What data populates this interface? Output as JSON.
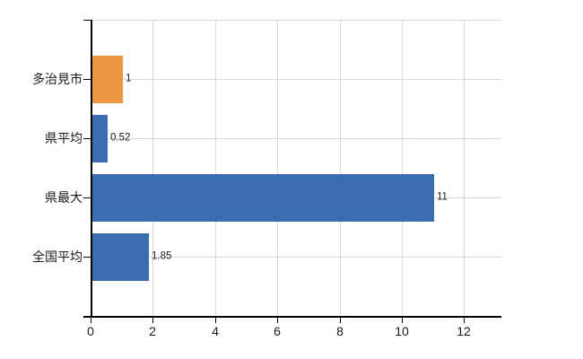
{
  "chart_data": {
    "type": "bar",
    "orientation": "horizontal",
    "title": "",
    "categories": [
      "多治見市",
      "県平均",
      "県最大",
      "全国平均"
    ],
    "values": [
      1,
      0.52,
      11,
      1.85
    ],
    "value_labels": [
      "1",
      "0.52",
      "11",
      "1.85"
    ],
    "bar_colors": [
      "#ee9741",
      "#3c6cb0",
      "#3c6cb0",
      "#3c6cb0"
    ],
    "x_ticks": [
      0,
      2,
      4,
      6,
      8,
      10,
      12
    ],
    "x_tick_labels": [
      "0",
      "2",
      "4",
      "6",
      "8",
      "10",
      "12"
    ],
    "xlim": [
      0,
      13.2
    ],
    "grid": true,
    "legend": false,
    "colors": {
      "highlight_bar": "#ee9741",
      "default_bar": "#3c6cb0",
      "grid": "#d9d9d9",
      "axis": "#000000",
      "text": "#1a1a1a",
      "background": "#ffffff"
    }
  }
}
